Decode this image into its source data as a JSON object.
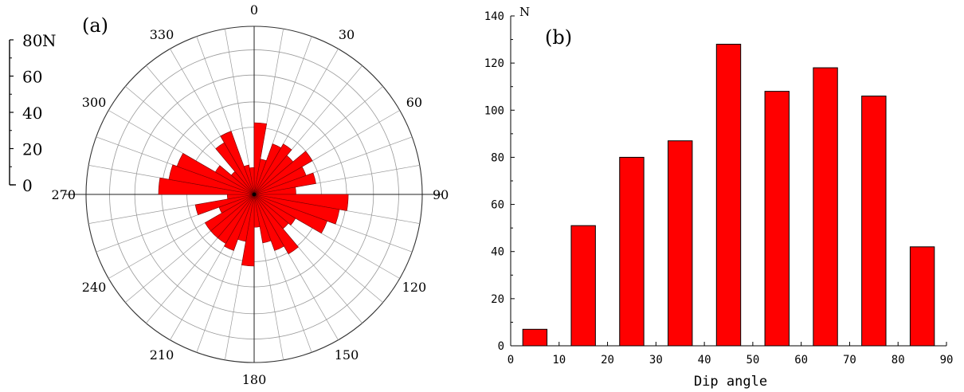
{
  "chart_data": [
    {
      "type": "rose",
      "panel_label": "(a)",
      "radial_axis": {
        "unit_label": "N",
        "ticks": [
          0,
          20,
          40,
          60,
          80
        ],
        "max": 80
      },
      "direction_labels": [
        "0",
        "30",
        "60",
        "90",
        "120",
        "150",
        "180",
        "210",
        "240",
        "270",
        "300",
        "330"
      ],
      "bin_width_deg": 10,
      "bins": [
        {
          "angle_start": 0,
          "value": 48
        },
        {
          "angle_start": 10,
          "value": 24
        },
        {
          "angle_start": 20,
          "value": 36
        },
        {
          "angle_start": 30,
          "value": 39
        },
        {
          "angle_start": 40,
          "value": 34
        },
        {
          "angle_start": 50,
          "value": 45
        },
        {
          "angle_start": 60,
          "value": 37
        },
        {
          "angle_start": 70,
          "value": 42
        },
        {
          "angle_start": 80,
          "value": 28
        },
        {
          "angle_start": 90,
          "value": 63
        },
        {
          "angle_start": 100,
          "value": 58
        },
        {
          "angle_start": 110,
          "value": 52
        },
        {
          "angle_start": 120,
          "value": 32
        },
        {
          "angle_start": 130,
          "value": 30
        },
        {
          "angle_start": 140,
          "value": 46
        },
        {
          "angle_start": 150,
          "value": 40
        },
        {
          "angle_start": 160,
          "value": 33
        },
        {
          "angle_start": 170,
          "value": 22
        },
        {
          "angle_start": 180,
          "value": 48
        },
        {
          "angle_start": 190,
          "value": 32
        },
        {
          "angle_start": 200,
          "value": 40
        },
        {
          "angle_start": 210,
          "value": 38
        },
        {
          "angle_start": 220,
          "value": 38
        },
        {
          "angle_start": 230,
          "value": 38
        },
        {
          "angle_start": 240,
          "value": 25
        },
        {
          "angle_start": 250,
          "value": 40
        },
        {
          "angle_start": 260,
          "value": 18
        },
        {
          "angle_start": 270,
          "value": 64
        },
        {
          "angle_start": 280,
          "value": 58
        },
        {
          "angle_start": 290,
          "value": 55
        },
        {
          "angle_start": 300,
          "value": 30
        },
        {
          "angle_start": 310,
          "value": 20
        },
        {
          "angle_start": 320,
          "value": 40
        },
        {
          "angle_start": 330,
          "value": 45
        },
        {
          "angle_start": 340,
          "value": 20
        },
        {
          "angle_start": 350,
          "value": 18
        }
      ],
      "color": "#ff0000"
    },
    {
      "type": "bar",
      "panel_label": "(b)",
      "xlabel": "Dip angle",
      "ylabel": "N",
      "x_ticks": [
        0,
        10,
        20,
        30,
        40,
        50,
        60,
        70,
        80,
        90
      ],
      "y_ticks": [
        0,
        20,
        40,
        60,
        80,
        100,
        120,
        140
      ],
      "xlim": [
        0,
        90
      ],
      "ylim": [
        0,
        140
      ],
      "bins": [
        {
          "from": 0,
          "to": 10,
          "value": 7
        },
        {
          "from": 10,
          "to": 20,
          "value": 51
        },
        {
          "from": 20,
          "to": 30,
          "value": 80
        },
        {
          "from": 30,
          "to": 40,
          "value": 87
        },
        {
          "from": 40,
          "to": 50,
          "value": 128
        },
        {
          "from": 50,
          "to": 60,
          "value": 108
        },
        {
          "from": 60,
          "to": 70,
          "value": 118
        },
        {
          "from": 70,
          "to": 80,
          "value": 106
        },
        {
          "from": 80,
          "to": 90,
          "value": 42
        }
      ],
      "color": "#ff0000"
    }
  ]
}
